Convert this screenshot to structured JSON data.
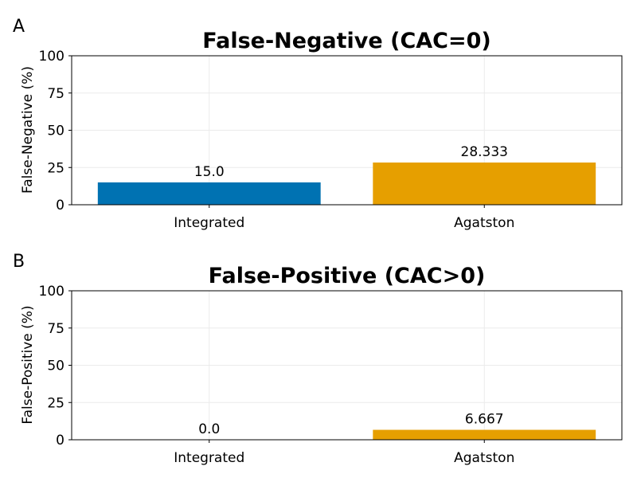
{
  "chart_data": [
    {
      "panel_label": "A",
      "type": "bar",
      "title": "False-Negative (CAC=0)",
      "xlabel": "",
      "ylabel": "False-Negative (%)",
      "categories": [
        "Integrated",
        "Agatston"
      ],
      "values": [
        15.0,
        28.333
      ],
      "value_labels": [
        "15.0",
        "28.333"
      ],
      "colors": [
        "#0072b2",
        "#e69f00"
      ],
      "ylim": [
        0,
        100
      ],
      "yticks": [
        0,
        25,
        50,
        75,
        100
      ],
      "grid": true
    },
    {
      "panel_label": "B",
      "type": "bar",
      "title": "False-Positive (CAC>0)",
      "xlabel": "",
      "ylabel": "False-Positive (%)",
      "categories": [
        "Integrated",
        "Agatston"
      ],
      "values": [
        0.0,
        6.667
      ],
      "value_labels": [
        "0.0",
        "6.667"
      ],
      "colors": [
        "#0072b2",
        "#e69f00"
      ],
      "ylim": [
        0,
        100
      ],
      "yticks": [
        0,
        25,
        50,
        75,
        100
      ],
      "grid": true
    }
  ]
}
